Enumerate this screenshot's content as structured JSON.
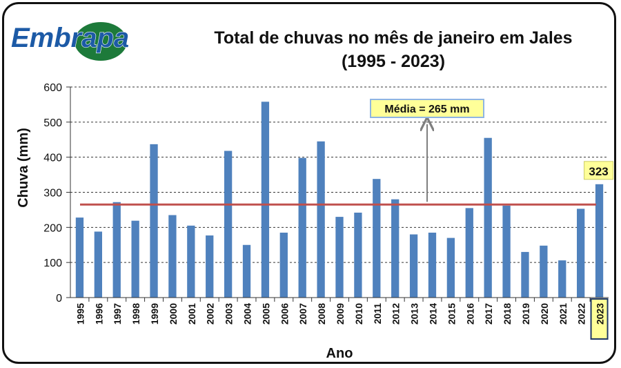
{
  "logo_text": "Embrapa",
  "title_line1": "Total de chuvas no mês de janeiro em Jales",
  "title_line2": "(1995 - 2023)",
  "colors": {
    "bar": "#4f81bd",
    "mean_line": "#c0504d",
    "callout_bg": "#ffff99",
    "logo_green": "#1d7a3a",
    "logo_blue": "#1c5aa6"
  },
  "chart_data": {
    "type": "bar",
    "title": "Total de chuvas no mês de janeiro em Jales (1995 - 2023)",
    "xlabel": "Ano",
    "ylabel": "Chuva (mm)",
    "ylim": [
      0,
      600
    ],
    "yticks": [
      0,
      100,
      200,
      300,
      400,
      500,
      600
    ],
    "grid": "horizontal dashed",
    "categories": [
      "1995",
      "1996",
      "1997",
      "1998",
      "1999",
      "2000",
      "2001",
      "2002",
      "2003",
      "2004",
      "2005",
      "2006",
      "2007",
      "2008",
      "2009",
      "2010",
      "2011",
      "2012",
      "2013",
      "2014",
      "2015",
      "2016",
      "2017",
      "2018",
      "2019",
      "2020",
      "2021",
      "2022",
      "2023"
    ],
    "values": [
      228,
      188,
      272,
      219,
      437,
      235,
      205,
      177,
      418,
      150,
      558,
      185,
      398,
      445,
      230,
      242,
      338,
      280,
      180,
      185,
      170,
      255,
      455,
      262,
      130,
      148,
      106,
      253,
      323
    ],
    "mean": 265,
    "mean_label": "Média = 265 mm",
    "highlight_label": "323",
    "highlight_category": "2023"
  }
}
